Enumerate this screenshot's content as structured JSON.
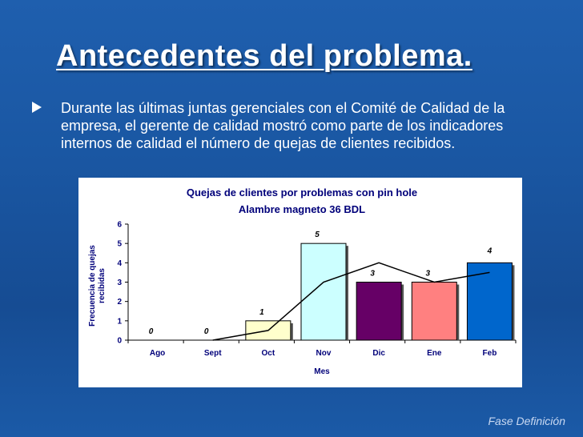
{
  "slide": {
    "title": "Antecedentes del problema.",
    "bullet": "Durante las últimas juntas gerenciales con el Comité de Calidad de la empresa, el gerente de calidad mostró como parte de los indicadores internos de calidad el número de quejas de clientes recibidos.",
    "footer": "Fase Definición"
  },
  "colors": {
    "background": "#1a57a3",
    "text": "#ffffff",
    "chart_text": "#00007a",
    "bars": [
      "#ffffff",
      "#ffffff",
      "#ffffcc",
      "#ccffff",
      "#660066",
      "#ff8080",
      "#0066cc"
    ],
    "line": "#000000"
  },
  "chart_data": {
    "type": "bar",
    "title": "Quejas de clientes por problemas con pin hole",
    "subtitle": "Alambre magneto 36 BDL",
    "xlabel": "Mes",
    "ylabel": "Frecuencia de quejas recibidas",
    "categories": [
      "Ago",
      "Sept",
      "Oct",
      "Nov",
      "Dic",
      "Ene",
      "Feb"
    ],
    "values": [
      0,
      0,
      1,
      5,
      3,
      3,
      4
    ],
    "data_labels": [
      "0",
      "0",
      "1",
      "5",
      "3",
      "3",
      "4"
    ],
    "ylim": [
      0,
      6
    ],
    "yticks": [
      "0",
      "1",
      "2",
      "3",
      "4",
      "5",
      "6"
    ],
    "trend_line": [
      0,
      0,
      0.5,
      3,
      4,
      3,
      3.5
    ],
    "grid": false,
    "legend": "none"
  }
}
